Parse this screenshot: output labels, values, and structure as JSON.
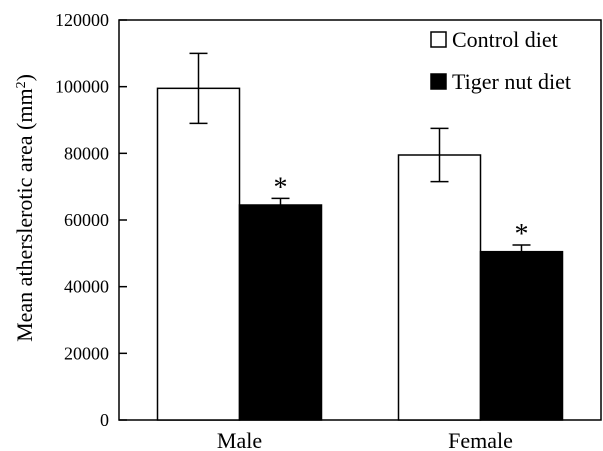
{
  "chart_data": {
    "type": "bar",
    "categories": [
      "Male",
      "Female"
    ],
    "series": [
      {
        "name": "Control diet",
        "color": "#ffffff",
        "values": [
          99500,
          79500
        ],
        "error": [
          10500,
          8000
        ]
      },
      {
        "name": "Tiger nut diet",
        "color": "#000000",
        "values": [
          64500,
          50500
        ],
        "error": [
          2000,
          2000
        ]
      }
    ],
    "significance": [
      {
        "category": "Male",
        "series": "Tiger nut diet",
        "label": "*"
      },
      {
        "category": "Female",
        "series": "Tiger nut diet",
        "label": "*"
      }
    ],
    "ylabel_main": "Mean atherslerotic area (mm",
    "ylabel_sup": "2",
    "ylabel_end": ")",
    "ylim": [
      0,
      120000
    ],
    "yticks": [
      0,
      20000,
      40000,
      60000,
      80000,
      100000,
      120000
    ],
    "legend_position": "top-right",
    "grid": false
  }
}
